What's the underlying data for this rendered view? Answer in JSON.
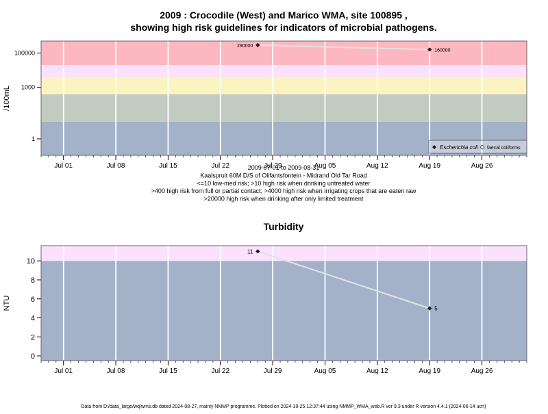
{
  "title_line1": "2009 : Crocodile (West) and Marico WMA, site 100895 ,",
  "title_line2": "showing high risk guidelines for indicators of microbial pathogens.",
  "colors": {
    "band_blue": "#a3b2c9",
    "band_green": "#c2cbc1",
    "band_yellow": "#fbf4c1",
    "band_pink_light": "#fbe1fb",
    "band_pink": "#fdb7c0",
    "series_line": "#e2e2e2",
    "grid": "#ffffff"
  },
  "chart_data": [
    {
      "type": "line",
      "ylabel": "/100mL",
      "yscale": "log",
      "yticks": [
        "1",
        "1000",
        "100000"
      ],
      "xticks": [
        "Jul 01",
        "Jul 08",
        "Jul 15",
        "Jul 22",
        "Jul 29",
        "Aug 05",
        "Aug 12",
        "Aug 19",
        "Aug 26"
      ],
      "xlim": [
        "2009-06-28",
        "2009-09-01"
      ],
      "ylim": [
        0.11,
        500000
      ],
      "bands": [
        {
          "from": 0.11,
          "to": 10,
          "color": "band_blue"
        },
        {
          "from": 10,
          "to": 400,
          "color": "band_green"
        },
        {
          "from": 400,
          "to": 4000,
          "color": "band_yellow"
        },
        {
          "from": 4000,
          "to": 20000,
          "color": "band_pink_light"
        },
        {
          "from": 20000,
          "to": 500000,
          "color": "band_pink"
        }
      ],
      "series": [
        {
          "name": "Escherichia coli",
          "marker": "filled-diamond",
          "x": [
            "2009-07-27",
            "2009-08-19"
          ],
          "y": [
            290000,
            160000
          ],
          "labels": [
            "290000",
            "160000"
          ]
        }
      ],
      "legend": {
        "position": "bottom-right",
        "entries": [
          "Escherichia coli",
          "faecal coliforms"
        ]
      },
      "subtitle": [
        "2009-07-01 to 2009-08-31",
        "Kaalspruit 60M D/S of Olifantsfontein - Midrand Old Tar Road",
        "<=10 low-med risk; >10 high risk when drinking untreated water",
        ">400 high risk from full or partial contact; >4000 high risk when irrigating crops that are eaten raw",
        ">20000 high risk when drinking after only limited treatment"
      ]
    },
    {
      "type": "line",
      "title": "Turbidity",
      "ylabel": "NTU",
      "yticks": [
        "0",
        "2",
        "4",
        "6",
        "8",
        "10"
      ],
      "xticks": [
        "Jul 01",
        "Jul 08",
        "Jul 15",
        "Jul 22",
        "Jul 29",
        "Aug 05",
        "Aug 12",
        "Aug 19",
        "Aug 26"
      ],
      "xlim": [
        "2009-06-28",
        "2009-09-01"
      ],
      "ylim": [
        -0.5,
        11.6
      ],
      "bands": [
        {
          "from": -0.5,
          "to": 10,
          "color": "band_blue"
        },
        {
          "from": 10,
          "to": 11.6,
          "color": "band_pink_light"
        }
      ],
      "series": [
        {
          "name": "",
          "marker": "filled-diamond",
          "x": [
            "2009-07-27",
            "2009-08-19"
          ],
          "y": [
            11,
            5
          ],
          "labels": [
            "11",
            "5"
          ]
        }
      ]
    }
  ],
  "footer": "Data from D:/data_large/wq/wms.db dated 2024-08-27, mainly NMMP programme. Plotted on 2024-10-25 12:37:44 using NMMP_WMA_web.R ver 9.3 under R version 4.4.1 (2024-06-14 ucrt)"
}
